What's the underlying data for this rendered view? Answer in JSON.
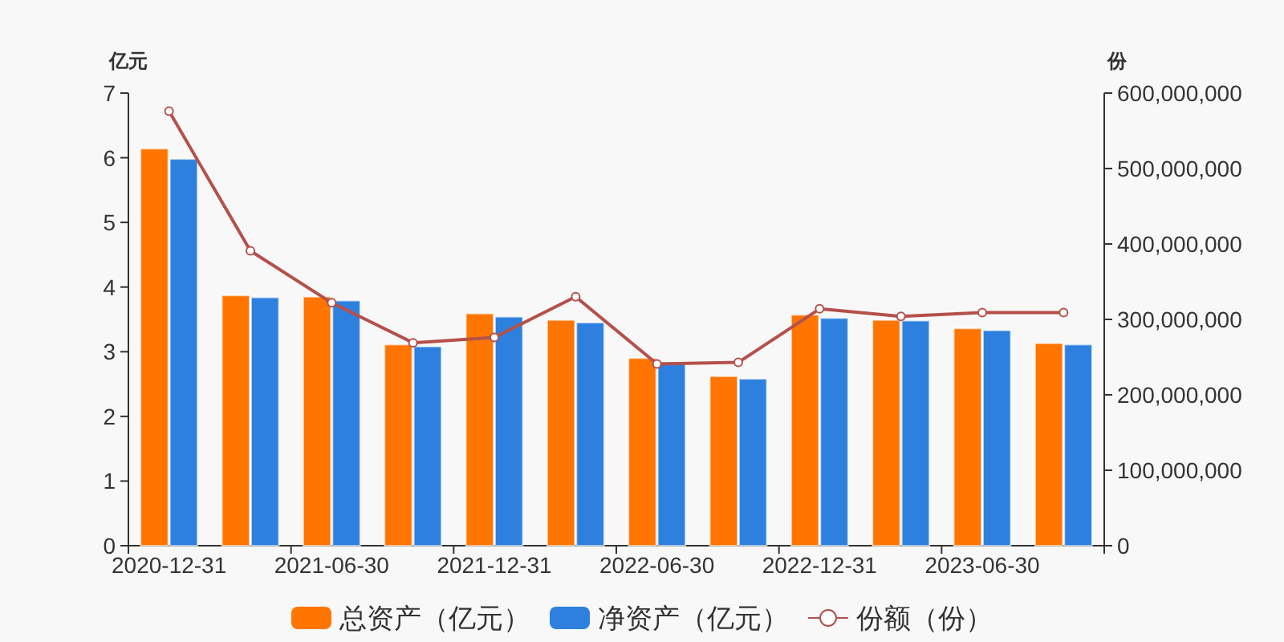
{
  "chart_data": {
    "type": "bar",
    "categories": [
      "2020-12-31",
      null,
      "2021-06-30",
      null,
      "2021-12-31",
      null,
      "2022-06-30",
      null,
      "2022-12-31",
      null,
      "2023-06-30",
      null
    ],
    "ylabel": "亿元",
    "y2label": "份",
    "ylim": [
      0,
      7
    ],
    "yticks": [
      0,
      1,
      2,
      3,
      4,
      5,
      6,
      7
    ],
    "y2lim": [
      0,
      600000000
    ],
    "y2ticks": [
      {
        "value": 0,
        "label": "0"
      },
      {
        "value": 100000000,
        "label": "100,000,000"
      },
      {
        "value": 200000000,
        "label": "200,000,000"
      },
      {
        "value": 300000000,
        "label": "300,000,000"
      },
      {
        "value": 400000000,
        "label": "400,000,000"
      },
      {
        "value": 500000000,
        "label": "500,000,000"
      },
      {
        "value": 600000000,
        "label": "600,000,000"
      }
    ],
    "grid": false,
    "legend": "bottom",
    "series": [
      {
        "name": "总资产（亿元）",
        "color": "#ff7500",
        "values": [
          6.14,
          3.87,
          3.85,
          3.11,
          3.59,
          3.49,
          2.9,
          2.62,
          3.57,
          3.49,
          3.36,
          3.13
        ]
      },
      {
        "name": "净资产（亿元）",
        "color": "#2e80de",
        "values": [
          5.98,
          3.84,
          3.79,
          3.08,
          3.54,
          3.45,
          2.84,
          2.58,
          3.52,
          3.48,
          3.33,
          3.11
        ]
      },
      {
        "name": "份额（份）",
        "type": "line",
        "axis": "y2",
        "marker": "circle",
        "color": "#b5504b",
        "values": [
          576000000,
          391000000,
          322000000,
          269000000,
          276000000,
          330000000,
          241000000,
          243000000,
          314000000,
          304000000,
          309000000,
          309000000
        ]
      }
    ]
  }
}
